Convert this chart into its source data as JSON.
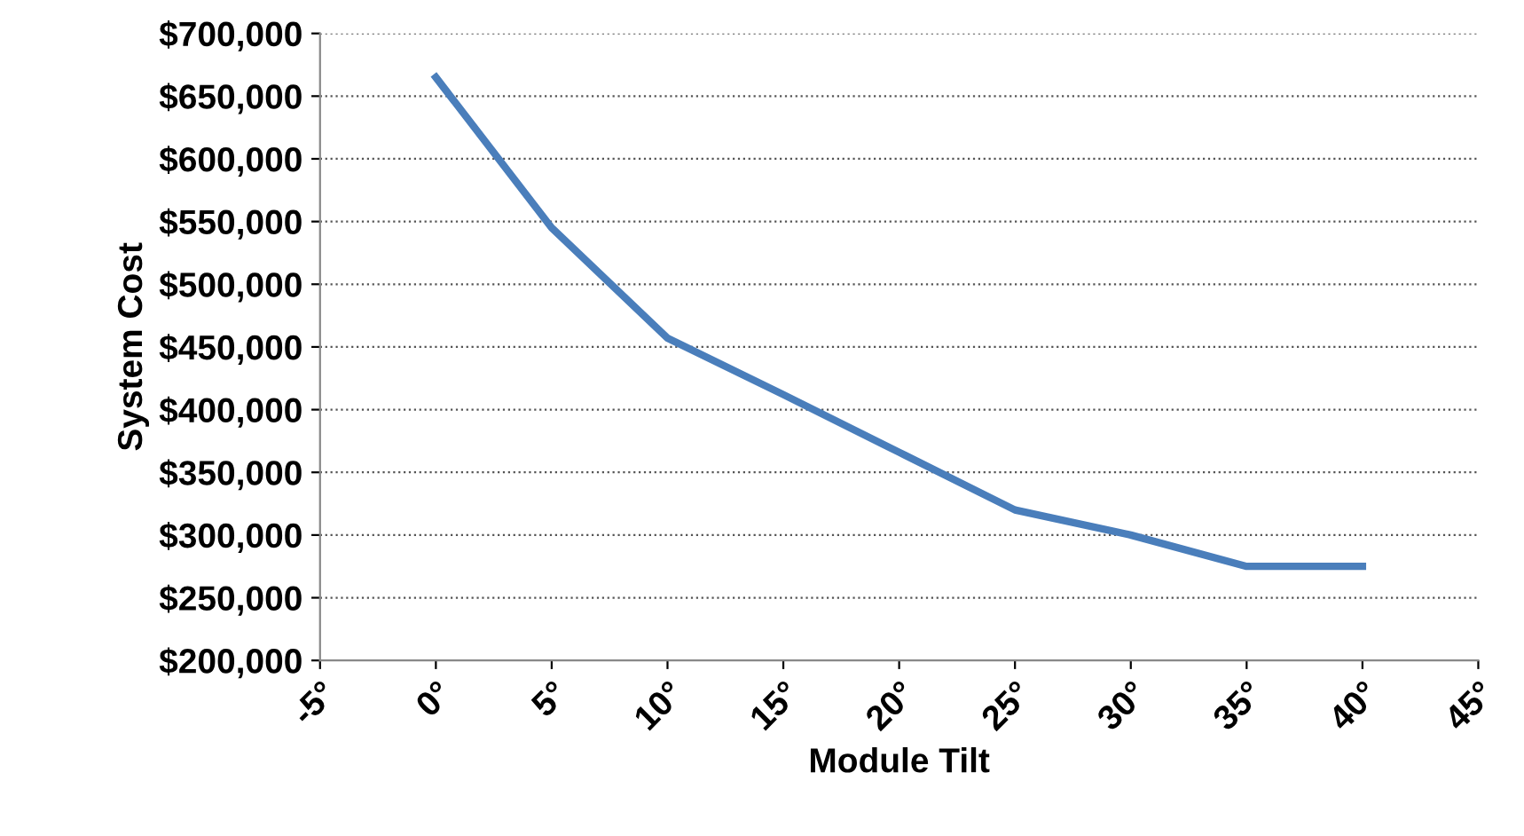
{
  "chart_data": {
    "type": "line",
    "xlabel": "Module Tilt",
    "ylabel": "System Cost",
    "x": [
      0,
      5,
      10,
      15,
      20,
      25,
      30,
      35,
      40
    ],
    "series": [
      {
        "color": "#4a7ebb",
        "values": [
          665000,
          545000,
          457000,
          412000,
          366000,
          320000,
          300000,
          275000,
          275000
        ]
      }
    ],
    "xlim": [
      -5,
      45
    ],
    "xticks": [
      {
        "value": -5,
        "label": "-5°"
      },
      {
        "value": 0,
        "label": "0°"
      },
      {
        "value": 5,
        "label": "5°"
      },
      {
        "value": 10,
        "label": "10°"
      },
      {
        "value": 15,
        "label": "15°"
      },
      {
        "value": 20,
        "label": "20°"
      },
      {
        "value": 25,
        "label": "25°"
      },
      {
        "value": 30,
        "label": "30°"
      },
      {
        "value": 35,
        "label": "35°"
      },
      {
        "value": 40,
        "label": "40°"
      },
      {
        "value": 45,
        "label": "45°"
      }
    ],
    "ylim": [
      200000,
      700000
    ],
    "yticks": [
      {
        "value": 200000,
        "label": "$200,000"
      },
      {
        "value": 250000,
        "label": "$250,000"
      },
      {
        "value": 300000,
        "label": "$300,000"
      },
      {
        "value": 350000,
        "label": "$350,000"
      },
      {
        "value": 400000,
        "label": "$400,000"
      },
      {
        "value": 450000,
        "label": "$450,000"
      },
      {
        "value": 500000,
        "label": "$500,000"
      },
      {
        "value": 550000,
        "label": "$550,000"
      },
      {
        "value": 600000,
        "label": "$600,000"
      },
      {
        "value": 650000,
        "label": "$650,000"
      },
      {
        "value": 700000,
        "label": "$700,000"
      }
    ],
    "grid": "y",
    "marker": "none",
    "line_style": "solid"
  }
}
